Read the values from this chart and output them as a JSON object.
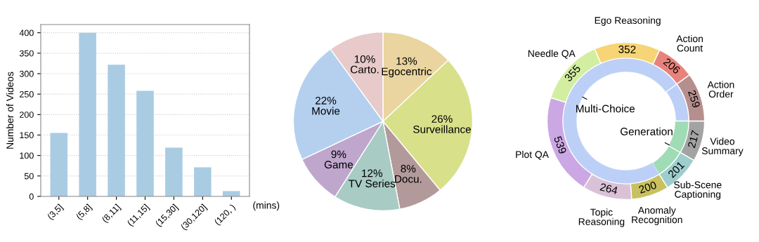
{
  "chart_data": [
    {
      "type": "bar",
      "categories": [
        "(3,5]",
        "(5,8]",
        "(8,11]",
        "(11,15]",
        "(15,30]",
        "(30,120]",
        "(120, )"
      ],
      "values": [
        155,
        400,
        322,
        258,
        119,
        71,
        13
      ],
      "color": "#a9cce3",
      "ylabel": "Number of Videos",
      "xlabel": "(mins)",
      "ylim": [
        0,
        420
      ],
      "yticks": [
        0,
        50,
        100,
        150,
        200,
        250,
        300,
        350,
        400
      ],
      "grid": "y"
    },
    {
      "type": "pie",
      "categories": [
        "Egocentric",
        "Surveillance",
        "Docu.",
        "TV Series",
        "Game",
        "Movie",
        "Carto."
      ],
      "values": [
        13,
        26,
        8,
        12,
        9,
        22,
        10
      ],
      "value_labels": [
        "13%",
        "26%",
        "8%",
        "12%",
        "9%",
        "22%",
        "10%"
      ],
      "colors": [
        "#ead5a0",
        "#d8e08a",
        "#b39a9a",
        "#a8cbc4",
        "#bfa6cc",
        "#b5d0ef",
        "#e8caca"
      ]
    },
    {
      "type": "donut",
      "categories": [
        "Video\nSummary",
        "Sub-Scene\nCaptioning",
        "Anomaly\nRecognition",
        "Topic\nReasoning",
        "Plot QA",
        "Needle QA",
        "Ego Reasoning",
        "Action\nCount",
        "Action\nOrder"
      ],
      "annotations": [
        "Generation",
        "Multi-Choice"
      ],
      "series": [
        {
          "values": [
            8.37,
            7.75,
            7.71,
            10.18,
            20.79,
            13.69,
            13.58,
            7.94,
            9.99
          ],
          "colors": [
            "#9fdcb5",
            "#9fdcb5",
            "#bcd0f7",
            "#bcd0f7",
            "#bcd0f7",
            "#bcd0f7",
            "#bcd0f7",
            "#bcd0f7",
            "#bcd0f7"
          ]
        },
        {
          "values": [
            217,
            201,
            200,
            264,
            539,
            355,
            352,
            206,
            259
          ],
          "colors": [
            "#a3a3a3",
            "#9fcdcd",
            "#c9c160",
            "#d9c2d8",
            "#cba7e3",
            "#d2eea0",
            "#f7d576",
            "#e8837c",
            "#b58f8e"
          ],
          "value_labels": [
            "217",
            "201",
            "200",
            "264",
            "539",
            "355",
            "352",
            "206",
            "259"
          ]
        }
      ]
    }
  ]
}
